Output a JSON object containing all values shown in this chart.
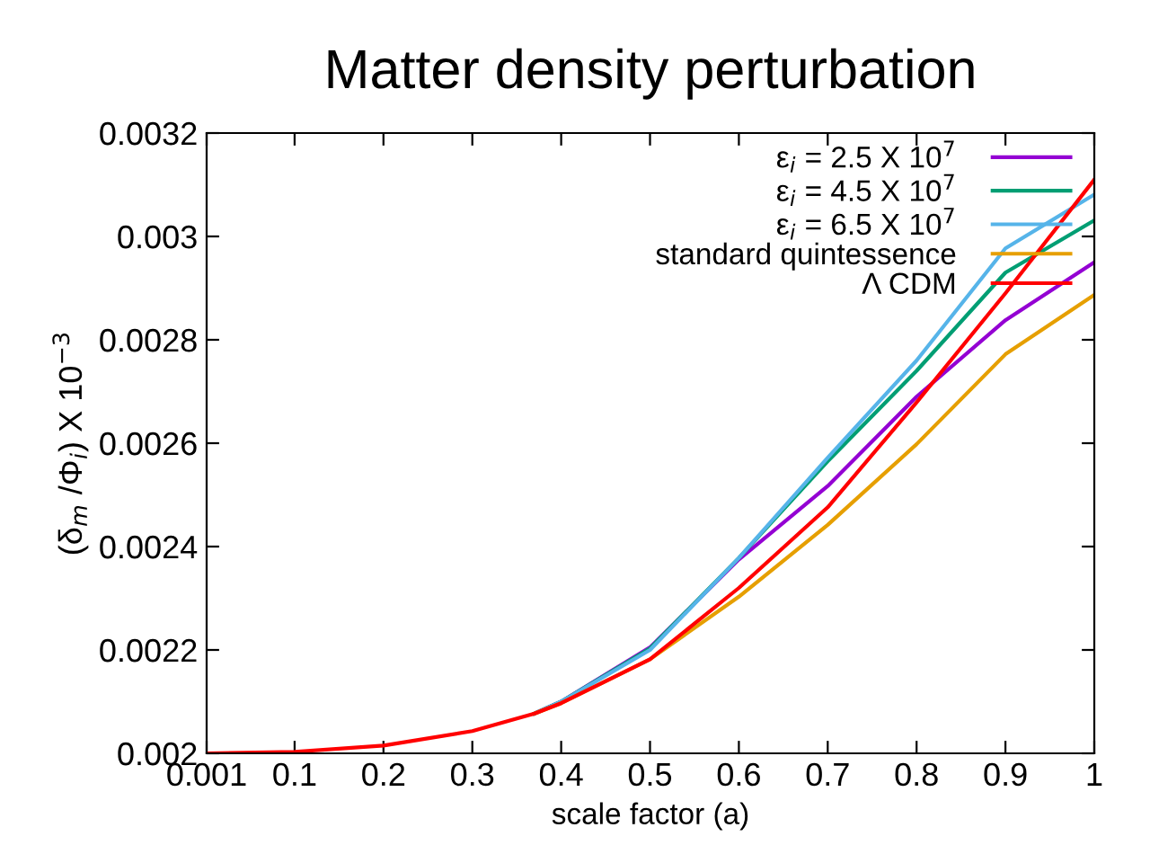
{
  "chart_data": {
    "type": "line",
    "title": "Matter density perturbation",
    "xlabel": "scale factor (a)",
    "ylabel": "(δ$_{m}$ /Φ$_{i}$) X 10$^{−3}$",
    "x": [
      0.001,
      0.1,
      0.2,
      0.3,
      0.37,
      0.4,
      0.5,
      0.6,
      0.7,
      0.8,
      0.9,
      1
    ],
    "series": [
      {
        "name": "ε$_{i}$ = 2.5 X 10$^{7}$",
        "color": "#9400d3",
        "values": [
          null,
          null,
          null,
          null,
          0.002077,
          0.0021,
          0.002205,
          0.002375,
          0.002517,
          0.00269,
          0.002838,
          0.00295
        ]
      },
      {
        "name": "ε$_{i}$ = 4.5 X 10$^{7}$",
        "color": "#009e73",
        "values": [
          null,
          null,
          null,
          null,
          0.002077,
          0.0021,
          0.002203,
          0.002378,
          0.002565,
          0.00274,
          0.00293,
          0.003031
        ]
      },
      {
        "name": "ε$_{i}$ = 6.5 X 10$^{7}$",
        "color": "#56b4e9",
        "values": [
          null,
          null,
          null,
          null,
          0.002077,
          0.0021,
          0.0022,
          0.002378,
          0.002572,
          0.00276,
          0.002977,
          0.003081
        ]
      },
      {
        "name": "standard quintessence",
        "color": "#e69f00",
        "values": [
          null,
          null,
          null,
          null,
          0.002077,
          0.002097,
          0.002182,
          0.002303,
          0.002442,
          0.002598,
          0.002772,
          0.002887
        ]
      },
      {
        "name": "Λ CDM",
        "color": "#ff0000",
        "values": [
          0.002,
          0.002003,
          0.002015,
          0.002043,
          0.002077,
          0.002097,
          0.002182,
          0.00232,
          0.002476,
          0.002679,
          0.00289,
          0.00311
        ]
      }
    ],
    "xlim": [
      0.001,
      1
    ],
    "ylim": [
      0.002,
      0.0032
    ],
    "xticks": [
      0.001,
      0.1,
      0.2,
      0.3,
      0.4,
      0.5,
      0.6,
      0.7,
      0.8,
      0.9,
      1
    ],
    "yticks": [
      0.002,
      0.0022,
      0.0024,
      0.0026,
      0.0028,
      0.003,
      0.0032
    ],
    "legend": "top right",
    "grid": false,
    "marker": "none",
    "line_style": "solid"
  }
}
